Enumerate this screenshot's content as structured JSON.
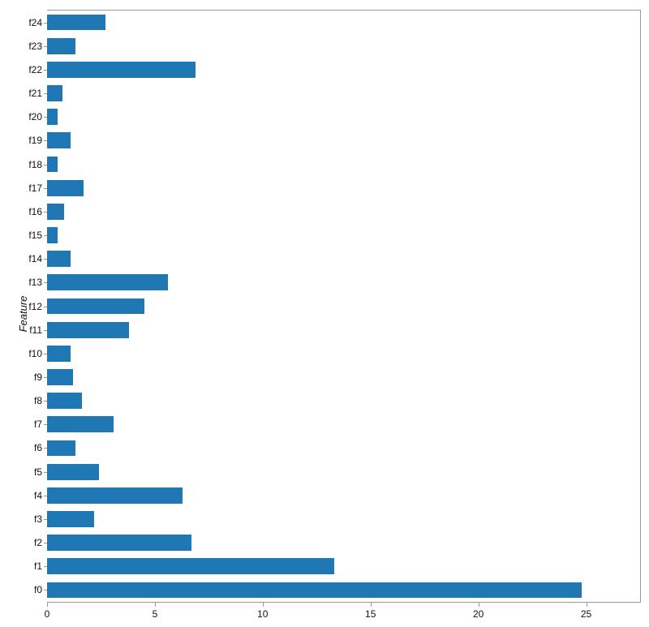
{
  "chart": {
    "type": "bar-horizontal",
    "ylabel": "Feature",
    "ylabel_fontsize": 13,
    "ylabel_fontstyle": "italic",
    "bar_color": "#1f77b4",
    "background_color": "#ffffff",
    "axis_color": "#999999",
    "tick_fontsize": 12,
    "tick_color": "#111111",
    "xlim": [
      0,
      27.5
    ],
    "xticks": [
      0,
      5,
      10,
      15,
      20,
      25
    ],
    "bar_width_ratio": 0.68,
    "categories": [
      "f24",
      "f23",
      "f22",
      "f21",
      "f20",
      "f19",
      "f18",
      "f17",
      "f16",
      "f15",
      "f14",
      "f13",
      "f12",
      "f11",
      "f10",
      "f9",
      "f8",
      "f7",
      "f6",
      "f5",
      "f4",
      "f3",
      "f2",
      "f1",
      "f0"
    ],
    "values": [
      2.7,
      1.3,
      6.9,
      0.7,
      0.5,
      1.1,
      0.5,
      1.7,
      0.8,
      0.5,
      1.1,
      5.6,
      4.5,
      3.8,
      1.1,
      1.2,
      1.6,
      3.1,
      1.3,
      2.4,
      6.3,
      2.2,
      6.7,
      13.3,
      24.8
    ]
  }
}
